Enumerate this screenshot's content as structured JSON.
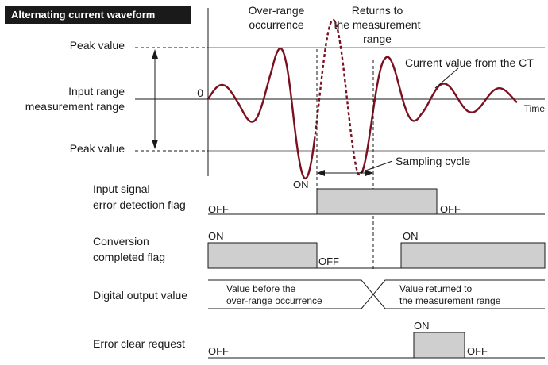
{
  "title": "Alternating current waveform",
  "left_labels": {
    "peak_top": "Peak value",
    "range_line1": "Input range",
    "range_line2": "measurement range",
    "peak_bottom": "Peak value",
    "zero": "0"
  },
  "annotations": {
    "overrange_line1": "Over-range",
    "overrange_line2": "occurrence",
    "returns_line1": "Returns to",
    "returns_line2": "the measurement",
    "returns_line3": "range",
    "current_value": "Current value from the CT",
    "time": "Time",
    "sampling_cycle": "Sampling cycle"
  },
  "signals": {
    "input_error": {
      "label_line1": "Input signal",
      "label_line2": "error detection flag",
      "off_left": "OFF",
      "on": "ON",
      "off_right": "OFF"
    },
    "conversion": {
      "label_line1": "Conversion",
      "label_line2": "completed flag",
      "on_left": "ON",
      "off": "OFF",
      "on_right": "ON"
    },
    "digital_output": {
      "label": "Digital output value",
      "before_line1": "Value before the",
      "before_line2": "over-range occurrence",
      "after_line1": "Value returned to",
      "after_line2": "the measurement range"
    },
    "error_clear": {
      "label": "Error clear request",
      "off_left": "OFF",
      "on": "ON",
      "off_right": "OFF"
    }
  },
  "colors": {
    "waveform": "#7a1020",
    "pulse_fill": "#cfcfcf",
    "title_bg": "#1a1a1a"
  }
}
